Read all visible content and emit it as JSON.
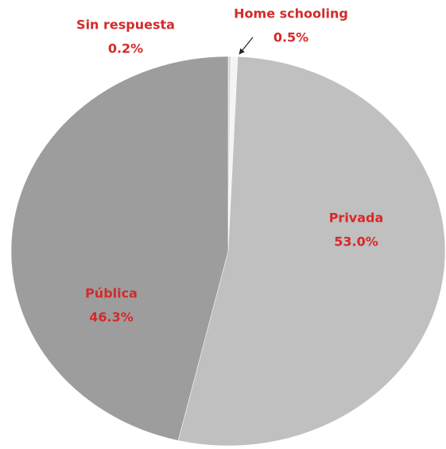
{
  "chart_data": {
    "type": "pie",
    "categories": [
      "Sin respuesta",
      "Home schooling",
      "Privada",
      "Pública"
    ],
    "values": [
      0.2,
      0.5,
      53,
      46.3
    ],
    "value_labels": [
      "0.2%",
      "0.5%",
      "53.0%",
      "46.3%"
    ],
    "colors": [
      "#d9d9d9",
      "#f4f4f4",
      "#c0c0c0",
      "#9d9d9d"
    ]
  }
}
